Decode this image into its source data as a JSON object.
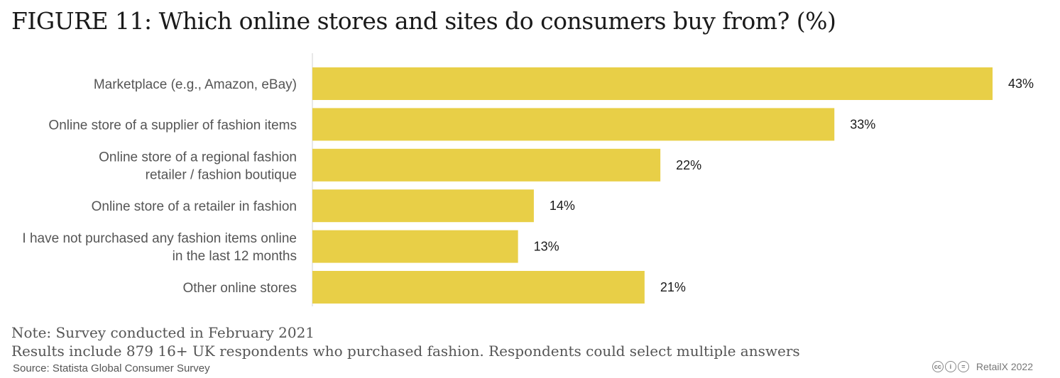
{
  "header": {
    "title": "FIGURE 11: Which online stores and sites do consumers buy from? (%)"
  },
  "chart_data": {
    "type": "bar",
    "orientation": "horizontal",
    "title": "FIGURE 11: Which online stores and sites do consumers buy from? (%)",
    "categories": [
      [
        "Marketplace (e.g., Amazon, eBay)"
      ],
      [
        "Online store of a supplier of fashion items"
      ],
      [
        "Online store of a regional fashion",
        "retailer / fashion boutique"
      ],
      [
        "Online store of a retailer in fashion"
      ],
      [
        "I have not purchased any fashion items online",
        "in the last 12 months"
      ],
      [
        "Other online stores"
      ]
    ],
    "values": [
      43,
      33,
      22,
      14,
      13,
      21
    ],
    "value_labels": [
      "43%",
      "33%",
      "22%",
      "14%",
      "13%",
      "21%"
    ],
    "xlim": [
      0,
      43
    ],
    "xlabel": "",
    "ylabel": "",
    "grid": false,
    "bar_color": "#e8cf47"
  },
  "footer": {
    "note_line1": "Note: Survey conducted in February 2021",
    "note_line2": "Results include 879 16+ UK respondents who purchased fashion. Respondents could select multiple answers",
    "source": "Source: Statista Global Consumer Survey",
    "license_icons": [
      "cc-icon",
      "by-icon",
      "nd-icon"
    ],
    "brand": "RetailX 2022"
  }
}
